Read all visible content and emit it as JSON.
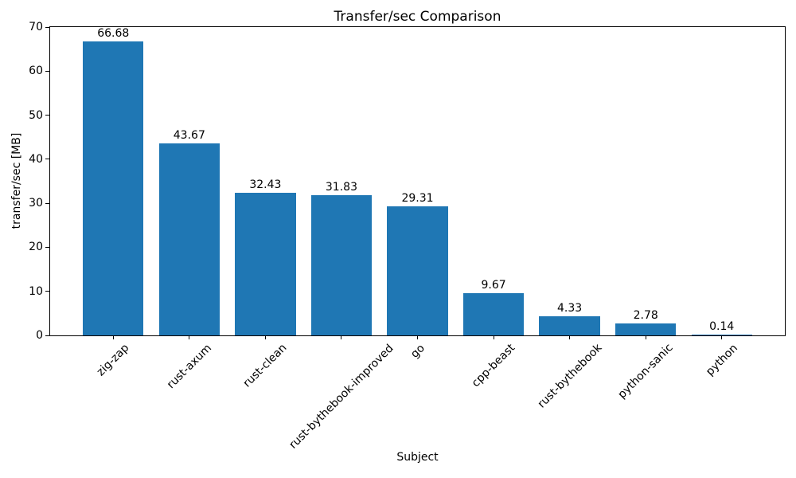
{
  "figure": {
    "background_color": "#ffffff",
    "text_color": "#000000"
  },
  "chart_data": {
    "type": "bar",
    "title": "Transfer/sec Comparison",
    "xlabel": "Subject",
    "ylabel": "transfer/sec [MB]",
    "categories": [
      "zig-zap",
      "rust-axum",
      "rust-clean",
      "rust-bythebook-improved",
      "go",
      "cpp-beast",
      "rust-bythebook",
      "python-sanic",
      "python"
    ],
    "values": [
      66.68,
      43.67,
      32.43,
      31.83,
      29.31,
      9.67,
      4.33,
      2.78,
      0.14
    ],
    "value_labels": [
      "66.68",
      "43.67",
      "32.43",
      "31.83",
      "29.31",
      "9.67",
      "4.33",
      "2.78",
      "0.14"
    ],
    "ylim": [
      0,
      70
    ],
    "yticks": [
      0,
      10,
      20,
      30,
      40,
      50,
      60,
      70
    ],
    "bar_color": "#1f77b4",
    "grid": false,
    "legend": null,
    "x_tick_rotation_deg": 45
  }
}
